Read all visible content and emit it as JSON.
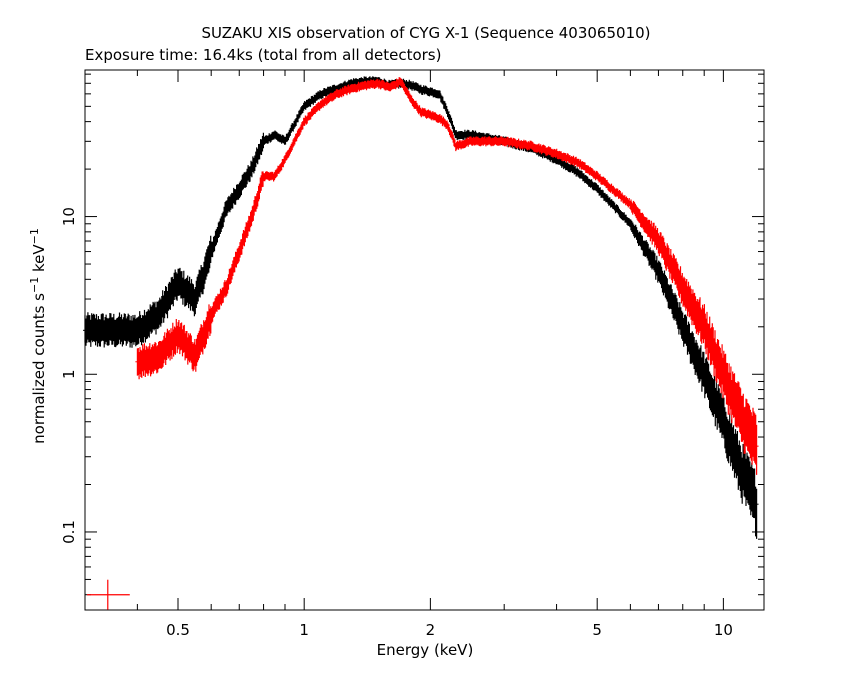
{
  "chart_data": {
    "type": "scatter",
    "title": "SUZAKU XIS observation of CYG X-1 (Sequence 403065010)",
    "subtitle": "Exposure time: 16.4ks (total from all detectors)",
    "xlabel": "Energy (keV)",
    "ylabel": "normalized counts s^-1 keV^-1",
    "ylabel_parts": {
      "prefix": "normalized counts s",
      "sup1": "−1",
      "middle": " keV",
      "sup2": "−1"
    },
    "x_scale": "log",
    "y_scale": "log",
    "xlim": [
      0.3,
      12.5
    ],
    "ylim": [
      0.032,
      85
    ],
    "x_ticks": [
      {
        "value": 0.5,
        "label": "0.5"
      },
      {
        "value": 1,
        "label": "1"
      },
      {
        "value": 2,
        "label": "2"
      },
      {
        "value": 5,
        "label": "5"
      },
      {
        "value": 10,
        "label": "10"
      }
    ],
    "y_ticks": [
      {
        "value": 0.1,
        "label": "0.1"
      },
      {
        "value": 1,
        "label": "1"
      },
      {
        "value": 10,
        "label": "10"
      }
    ],
    "grid": false,
    "legend": "none",
    "series": [
      {
        "color": "#000000",
        "x": [
          0.3,
          0.35,
          0.4,
          0.45,
          0.5,
          0.55,
          0.6,
          0.65,
          0.7,
          0.75,
          0.8,
          0.85,
          0.9,
          1.0,
          1.1,
          1.2,
          1.3,
          1.4,
          1.5,
          1.6,
          1.7,
          1.8,
          1.9,
          2.0,
          2.1,
          2.2,
          2.3,
          2.5,
          3.0,
          3.5,
          4.0,
          4.5,
          5.0,
          6.0,
          7.0,
          8.0,
          9.0,
          10.0,
          11.0,
          12.0
        ],
        "y": [
          1.9,
          1.9,
          1.9,
          2.4,
          3.8,
          3.0,
          6.0,
          11.0,
          15.0,
          20.0,
          30.0,
          33.0,
          30.0,
          50.0,
          60.0,
          65.0,
          70.0,
          72.0,
          72.0,
          68.0,
          70.0,
          68.0,
          64.0,
          62.0,
          60.0,
          46.0,
          33.0,
          33.0,
          30.0,
          27.0,
          23.0,
          19.0,
          15.0,
          9.0,
          4.5,
          2.0,
          1.0,
          0.5,
          0.25,
          0.15
        ]
      },
      {
        "color": "#ff0000",
        "x": [
          0.4,
          0.45,
          0.5,
          0.55,
          0.6,
          0.65,
          0.7,
          0.75,
          0.8,
          0.85,
          0.9,
          1.0,
          1.1,
          1.2,
          1.3,
          1.4,
          1.5,
          1.6,
          1.7,
          1.8,
          1.9,
          2.0,
          2.1,
          2.2,
          2.3,
          2.5,
          3.0,
          3.5,
          4.0,
          4.5,
          5.0,
          6.0,
          7.0,
          8.0,
          9.0,
          10.0,
          11.0,
          12.0
        ],
        "y": [
          1.2,
          1.3,
          1.8,
          1.3,
          2.4,
          3.5,
          6.0,
          10.0,
          18.0,
          18.0,
          23.0,
          40.0,
          52.0,
          60.0,
          65.0,
          68.0,
          70.0,
          66.0,
          72.0,
          55.0,
          46.0,
          44.0,
          42.0,
          38.0,
          28.0,
          30.0,
          30.0,
          28.0,
          25.0,
          22.0,
          18.0,
          12.0,
          7.0,
          3.5,
          2.0,
          1.0,
          0.55,
          0.35
        ]
      }
    ],
    "sample_error_bar": {
      "x": 0.34,
      "y": 0.04,
      "color": "#ff0000"
    }
  }
}
